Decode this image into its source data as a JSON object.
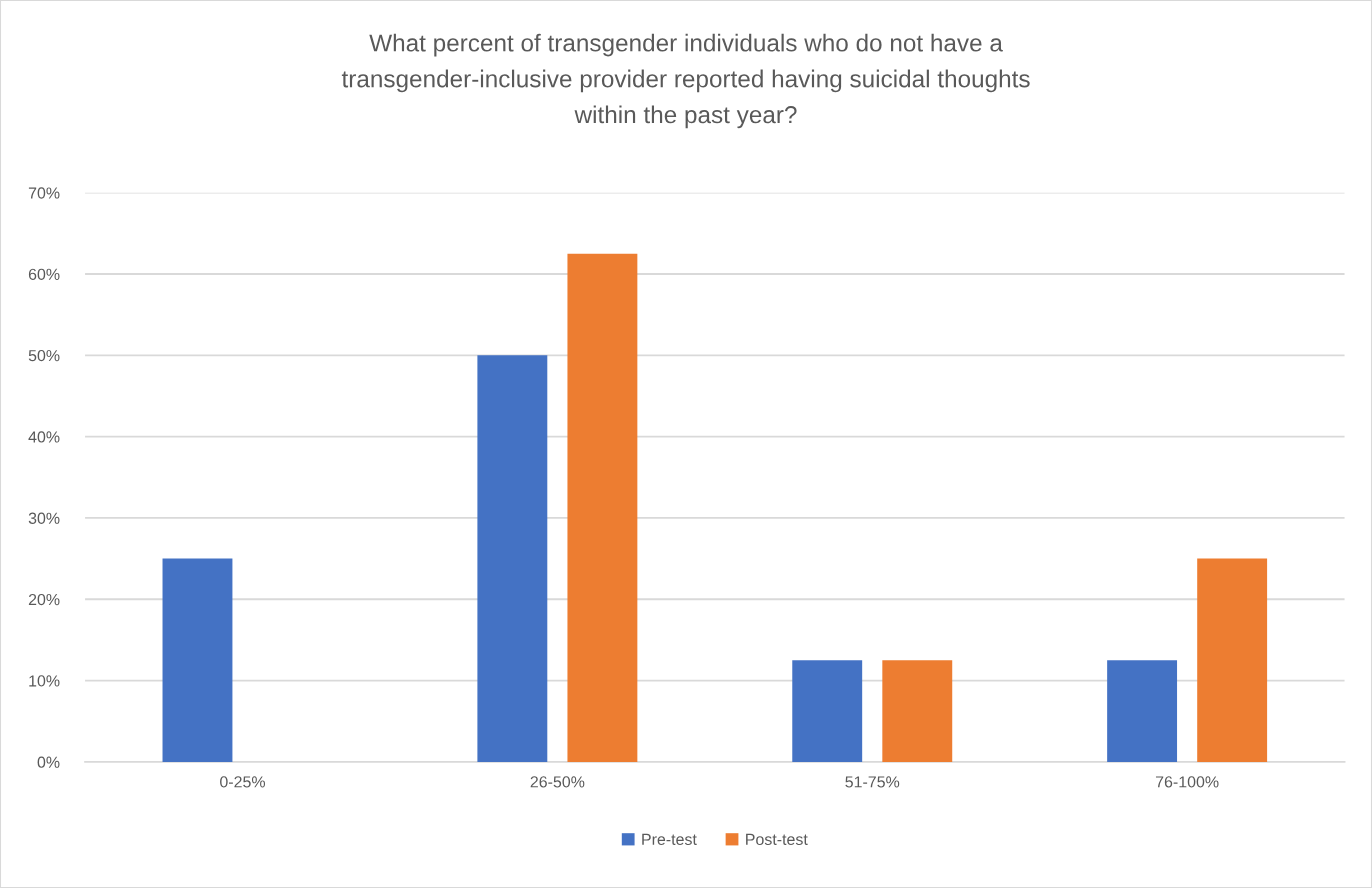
{
  "chart_data": {
    "type": "bar",
    "title": "What percent of transgender individuals who do not have a\ntransgender-inclusive provider reported having suicidal thoughts\nwithin the past year?",
    "categories": [
      "0-25%",
      "26-50%",
      "51-75%",
      "76-100%"
    ],
    "series": [
      {
        "name": "Pre-test",
        "color": "#4472c4",
        "values": [
          25,
          50,
          12.5,
          12.5
        ]
      },
      {
        "name": "Post-test",
        "color": "#ed7d31",
        "values": [
          null,
          62.5,
          12.5,
          25
        ]
      }
    ],
    "ylim": [
      0,
      70
    ],
    "yticks": [
      {
        "value": 0,
        "label": "0%"
      },
      {
        "value": 10,
        "label": "10%"
      },
      {
        "value": 20,
        "label": "20%"
      },
      {
        "value": 30,
        "label": "30%"
      },
      {
        "value": 40,
        "label": "40%"
      },
      {
        "value": 50,
        "label": "50%"
      },
      {
        "value": 60,
        "label": "60%"
      },
      {
        "value": 70,
        "label": "70%"
      }
    ],
    "grid": "y",
    "legend": "bottom"
  }
}
